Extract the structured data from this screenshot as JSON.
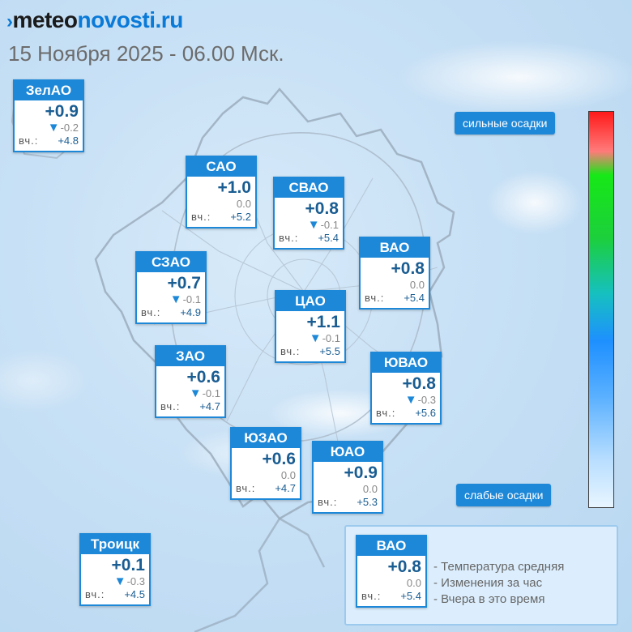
{
  "header": {
    "logo_mark": "›",
    "logo_part1": "meteo",
    "logo_part2": "novosti.ru",
    "subtitle": "15 Ноября 2025 - 06.00 Мск."
  },
  "yesterday_label": "вч.:",
  "change_arrow": "▼",
  "districts": [
    {
      "name": "ЗелАО",
      "temp": "+0.9",
      "change": "-0.2",
      "down": true,
      "yesterday": "+4.8"
    },
    {
      "name": "САО",
      "temp": "+1.0",
      "change": "0.0",
      "down": false,
      "yesterday": "+5.2"
    },
    {
      "name": "СВАО",
      "temp": "+0.8",
      "change": "-0.1",
      "down": true,
      "yesterday": "+5.4"
    },
    {
      "name": "СЗАО",
      "temp": "+0.7",
      "change": "-0.1",
      "down": true,
      "yesterday": "+4.9"
    },
    {
      "name": "ВАО",
      "temp": "+0.8",
      "change": "0.0",
      "down": false,
      "yesterday": "+5.4"
    },
    {
      "name": "ЦАО",
      "temp": "+1.1",
      "change": "-0.1",
      "down": true,
      "yesterday": "+5.5"
    },
    {
      "name": "ЗАО",
      "temp": "+0.6",
      "change": "-0.1",
      "down": true,
      "yesterday": "+4.7"
    },
    {
      "name": "ЮВАО",
      "temp": "+0.8",
      "change": "-0.3",
      "down": true,
      "yesterday": "+5.6"
    },
    {
      "name": "ЮЗАО",
      "temp": "+0.6",
      "change": "0.0",
      "down": false,
      "yesterday": "+4.7"
    },
    {
      "name": "ЮАО",
      "temp": "+0.9",
      "change": "0.0",
      "down": false,
      "yesterday": "+5.3"
    },
    {
      "name": "Троицк",
      "temp": "+0.1",
      "change": "-0.3",
      "down": true,
      "yesterday": "+4.5"
    }
  ],
  "scale": {
    "top_label": "сильные осадки",
    "bottom_label": "слабые осадки"
  },
  "legend": {
    "sample": {
      "name": "ВАО",
      "temp": "+0.8",
      "change": "0.0",
      "yesterday": "+5.4"
    },
    "lines": [
      "- Температура средняя",
      "- Изменения за час",
      "- Вчера в это время"
    ]
  },
  "colors": {
    "accent": "#1e88d8",
    "temp_text": "#1a5d92",
    "background": "#c7e0f5"
  }
}
